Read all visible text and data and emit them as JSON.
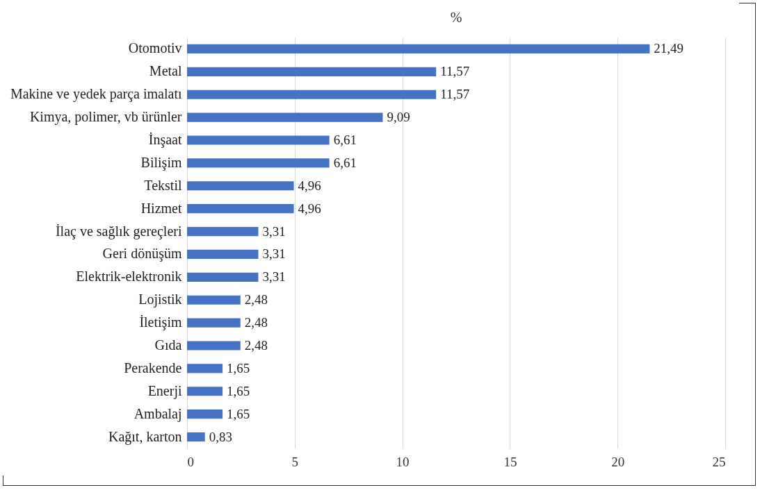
{
  "chart_data": {
    "type": "bar",
    "orientation": "horizontal",
    "title": "%",
    "categories": [
      "Otomotiv",
      "Metal",
      "Makine ve yedek parça imalatı",
      "Kimya, polimer, vb ürünler",
      "İnşaat",
      "Bilişim",
      "Tekstil",
      "Hizmet",
      "İlaç ve sağlık gereçleri",
      "Geri dönüşüm",
      "Elektrik-elektronik",
      "Lojistik",
      "İletişim",
      "Gıda",
      "Perakende",
      "Enerji",
      "Ambalaj",
      "Kağıt, karton"
    ],
    "values": [
      21.49,
      11.57,
      11.57,
      9.09,
      6.61,
      6.61,
      4.96,
      4.96,
      3.31,
      3.31,
      3.31,
      2.48,
      2.48,
      2.48,
      1.65,
      1.65,
      1.65,
      0.83
    ],
    "value_labels": [
      "21,49",
      "11,57",
      "11,57",
      "9,09",
      "6,61",
      "6,61",
      "4,96",
      "4,96",
      "3,31",
      "3,31",
      "3,31",
      "2,48",
      "2,48",
      "2,48",
      "1,65",
      "1,65",
      "1,65",
      "0,83"
    ],
    "color": "#4472c4",
    "xlim": [
      0,
      25
    ],
    "xticks": [
      0,
      5,
      10,
      15,
      20,
      25
    ],
    "grid": "x"
  }
}
